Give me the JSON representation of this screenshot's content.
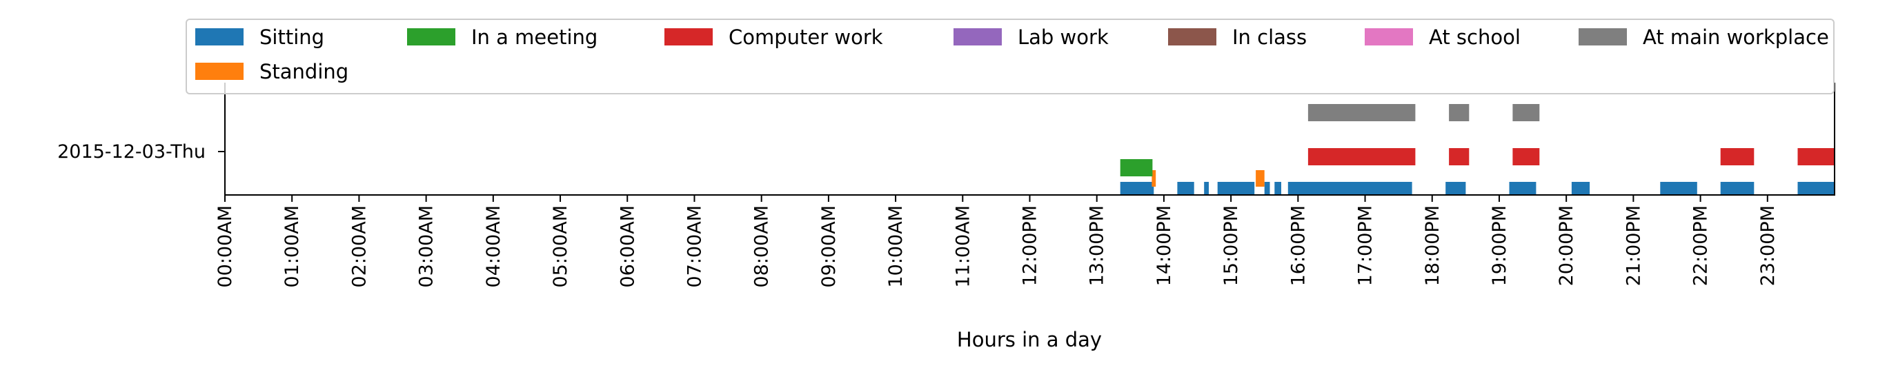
{
  "chart_data": {
    "type": "timeline",
    "xlabel": "Hours in a day",
    "xlim": [
      0,
      24
    ],
    "row_label": "2015-12-03-Thu",
    "x_ticks": [
      "00:00AM",
      "01:00AM",
      "02:00AM",
      "03:00AM",
      "04:00AM",
      "05:00AM",
      "06:00AM",
      "07:00AM",
      "08:00AM",
      "09:00AM",
      "10:00AM",
      "11:00AM",
      "12:00PM",
      "13:00PM",
      "14:00PM",
      "15:00PM",
      "16:00PM",
      "17:00PM",
      "18:00PM",
      "19:00PM",
      "20:00PM",
      "21:00PM",
      "22:00PM",
      "23:00PM"
    ],
    "legend": {
      "placement": "top"
    },
    "series": [
      {
        "name": "Sitting",
        "color": "#1f77b4",
        "intervals": [
          [
            13.35,
            13.85
          ],
          [
            14.2,
            14.45
          ],
          [
            14.6,
            14.67
          ],
          [
            14.8,
            15.35
          ],
          [
            15.5,
            15.58
          ],
          [
            15.65,
            15.75
          ],
          [
            15.85,
            17.7
          ],
          [
            18.2,
            18.5
          ],
          [
            19.15,
            19.55
          ],
          [
            20.08,
            20.35
          ],
          [
            21.4,
            21.95
          ],
          [
            22.3,
            22.8
          ],
          [
            23.45,
            24.0
          ]
        ]
      },
      {
        "name": "Standing",
        "color": "#ff7f0e",
        "intervals": [
          [
            13.82,
            13.88
          ],
          [
            15.37,
            15.5
          ]
        ]
      },
      {
        "name": "In a meeting",
        "color": "#2ca02c",
        "intervals": [
          [
            13.35,
            13.83
          ]
        ]
      },
      {
        "name": "Computer work",
        "color": "#d62728",
        "intervals": [
          [
            16.15,
            17.75
          ],
          [
            18.25,
            18.55
          ],
          [
            19.2,
            19.6
          ],
          [
            22.3,
            22.8
          ],
          [
            23.45,
            24.0
          ]
        ]
      },
      {
        "name": "Lab work",
        "color": "#9467bd",
        "intervals": []
      },
      {
        "name": "In class",
        "color": "#8c564b",
        "intervals": []
      },
      {
        "name": "At school",
        "color": "#e377c2",
        "intervals": []
      },
      {
        "name": "At main workplace",
        "color": "#7f7f7f",
        "intervals": [
          [
            16.15,
            17.75
          ],
          [
            18.25,
            18.55
          ],
          [
            19.2,
            19.6
          ]
        ]
      }
    ]
  }
}
